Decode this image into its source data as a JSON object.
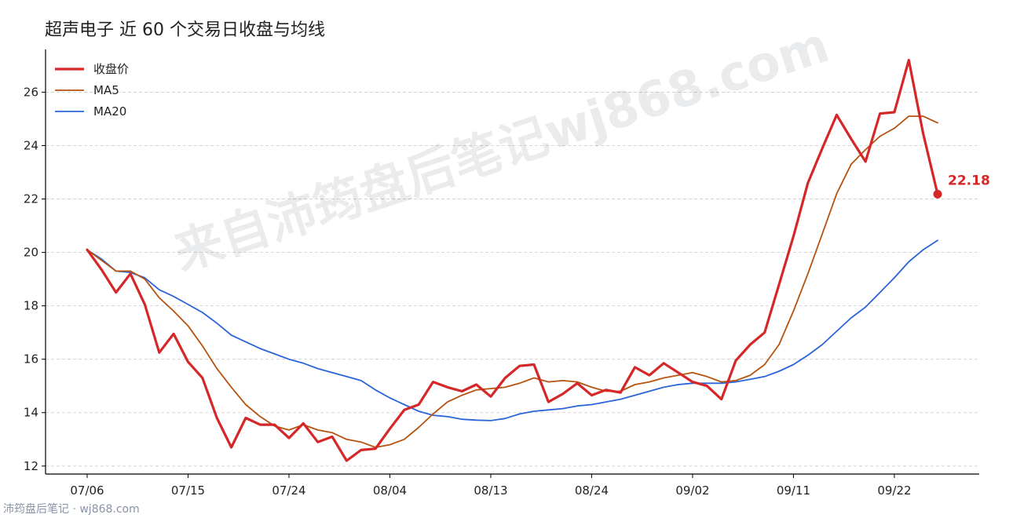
{
  "chart_data": {
    "type": "line",
    "title": "超声电子 近 60 个交易日收盘与均线",
    "xlabel": "",
    "ylabel": "",
    "ylim": [
      11.7,
      27.6
    ],
    "yticks": [
      12,
      14,
      16,
      18,
      20,
      22,
      24,
      26
    ],
    "grid": "horizontal dashed",
    "legend_position": "top-left",
    "x_tick_labels": [
      {
        "index": 0,
        "label": "07/06"
      },
      {
        "index": 7,
        "label": "07/15"
      },
      {
        "index": 14,
        "label": "07/24"
      },
      {
        "index": 21,
        "label": "08/04"
      },
      {
        "index": 28,
        "label": "08/13"
      },
      {
        "index": 35,
        "label": "08/24"
      },
      {
        "index": 42,
        "label": "09/02"
      },
      {
        "index": 49,
        "label": "09/11"
      },
      {
        "index": 56,
        "label": "09/22"
      }
    ],
    "series": [
      {
        "name": "收盘价",
        "color": "#d62728",
        "values": [
          20.1,
          19.35,
          18.5,
          19.2,
          18.05,
          16.25,
          16.95,
          15.9,
          15.3,
          13.8,
          12.7,
          13.8,
          13.55,
          13.55,
          13.05,
          13.6,
          12.9,
          13.1,
          12.2,
          12.6,
          12.65,
          13.4,
          14.1,
          14.3,
          15.15,
          14.95,
          14.8,
          15.05,
          14.6,
          15.3,
          15.75,
          15.8,
          14.4,
          14.7,
          15.1,
          14.65,
          14.85,
          14.75,
          15.7,
          15.4,
          15.85,
          15.5,
          15.15,
          15.0,
          14.5,
          15.95,
          16.55,
          17.0,
          18.8,
          20.6,
          22.6,
          23.9,
          25.15,
          24.25,
          23.4,
          25.2,
          25.25,
          27.2,
          24.45,
          22.18
        ]
      },
      {
        "name": "MA5",
        "color": "#b5530f",
        "values": [
          20.1,
          19.7,
          19.3,
          19.3,
          19.0,
          18.3,
          17.8,
          17.25,
          16.5,
          15.65,
          14.95,
          14.3,
          13.85,
          13.5,
          13.35,
          13.55,
          13.35,
          13.25,
          13.0,
          12.9,
          12.7,
          12.8,
          13.0,
          13.45,
          13.95,
          14.4,
          14.65,
          14.85,
          14.9,
          14.95,
          15.1,
          15.3,
          15.15,
          15.2,
          15.15,
          14.95,
          14.8,
          14.8,
          15.05,
          15.15,
          15.3,
          15.4,
          15.5,
          15.35,
          15.15,
          15.2,
          15.4,
          15.8,
          16.55,
          17.8,
          19.2,
          20.7,
          22.2,
          23.3,
          23.85,
          24.35,
          24.65,
          25.1,
          25.1,
          24.85
        ]
      },
      {
        "name": "MA20",
        "color": "#2a64d8",
        "values": [
          20.1,
          19.75,
          19.3,
          19.25,
          19.05,
          18.6,
          18.35,
          18.05,
          17.75,
          17.35,
          16.9,
          16.65,
          16.4,
          16.2,
          16.0,
          15.85,
          15.65,
          15.5,
          15.35,
          15.2,
          14.85,
          14.55,
          14.3,
          14.05,
          13.9,
          13.85,
          13.75,
          13.72,
          13.7,
          13.78,
          13.95,
          14.05,
          14.1,
          14.15,
          14.25,
          14.3,
          14.4,
          14.5,
          14.65,
          14.8,
          14.95,
          15.05,
          15.1,
          15.1,
          15.1,
          15.15,
          15.25,
          15.35,
          15.55,
          15.8,
          16.15,
          16.55,
          17.05,
          17.55,
          17.95,
          18.5,
          19.05,
          19.65,
          20.1,
          20.45
        ]
      }
    ],
    "end_label": "22.18",
    "watermark": "来自沛筠盘后笔记wj868.com"
  },
  "footer": {
    "credit": "沛筠盘后笔记 · wj868.com"
  }
}
